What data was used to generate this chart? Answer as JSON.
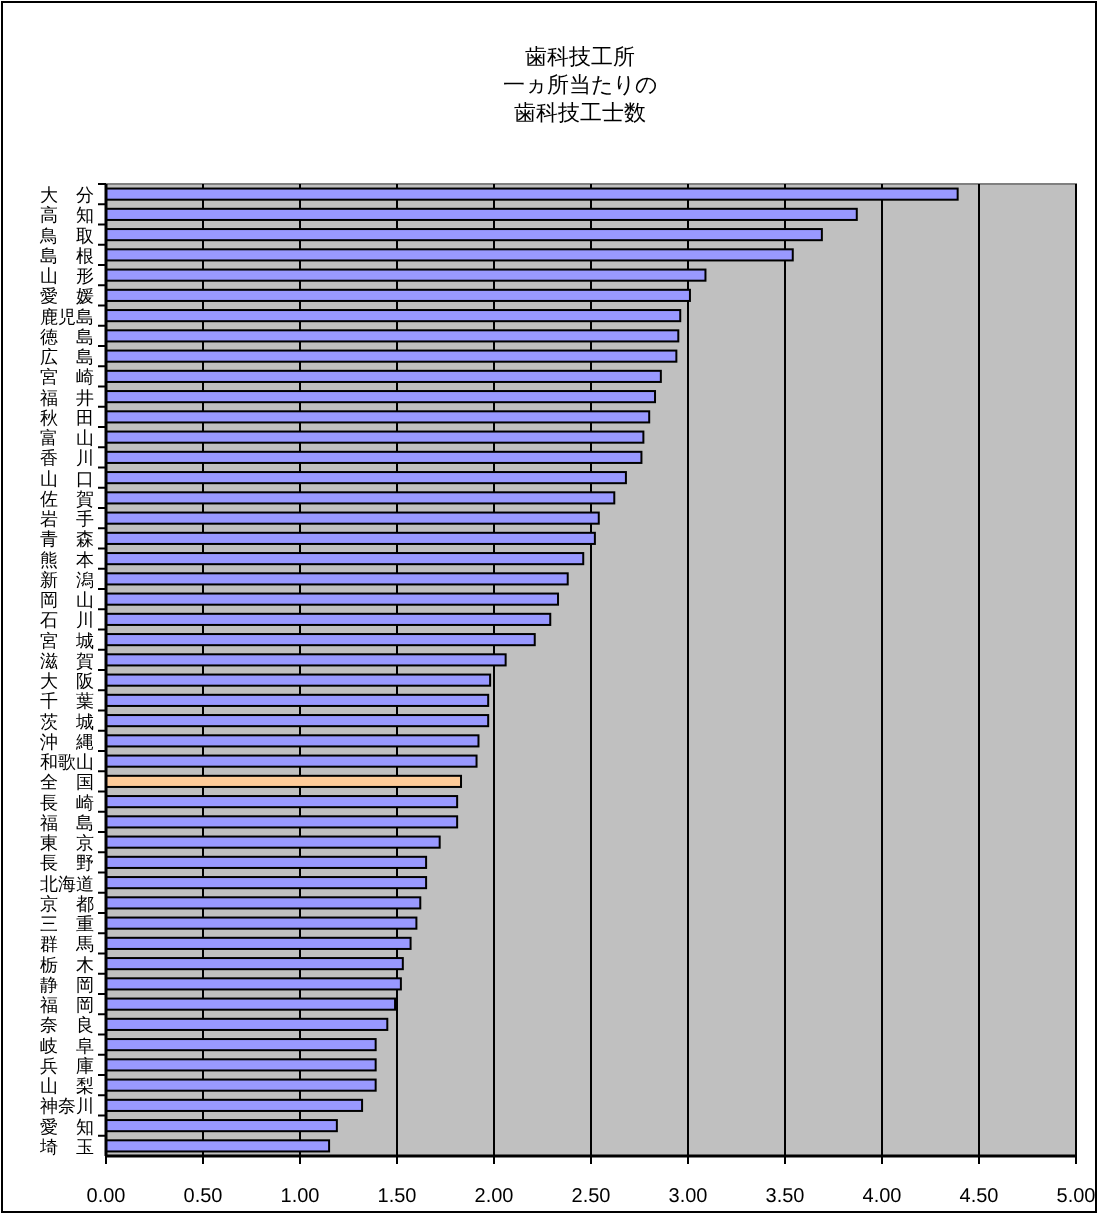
{
  "chart_data": {
    "type": "bar",
    "orientation": "horizontal",
    "title": "歯科技工所",
    "subtitle": "一ヵ所当たりの歯科技工士数",
    "categories": [
      "大　分",
      "高　知",
      "鳥　取",
      "島　根",
      "山　形",
      "愛　媛",
      "鹿児島",
      "徳　島",
      "広　島",
      "宮　崎",
      "福　井",
      "秋　田",
      "富　山",
      "香　川",
      "山　口",
      "佐　賀",
      "岩　手",
      "青　森",
      "熊　本",
      "新　潟",
      "岡　山",
      "石　川",
      "宮　城",
      "滋　賀",
      "大　阪",
      "千　葉",
      "茨　城",
      "沖　縄",
      "和歌山",
      "全　国",
      "長　崎",
      "福　島",
      "東　京",
      "長　野",
      "北海道",
      "京　都",
      "三　重",
      "群　馬",
      "栃　木",
      "静　岡",
      "福　岡",
      "奈　良",
      "岐　阜",
      "兵　庫",
      "山　梨",
      "神奈川",
      "愛　知",
      "埼　玉"
    ],
    "values": [
      4.39,
      3.87,
      3.69,
      3.54,
      3.09,
      3.01,
      2.96,
      2.95,
      2.94,
      2.86,
      2.83,
      2.8,
      2.77,
      2.76,
      2.68,
      2.62,
      2.54,
      2.52,
      2.46,
      2.38,
      2.33,
      2.29,
      2.21,
      2.06,
      1.98,
      1.97,
      1.97,
      1.92,
      1.91,
      1.83,
      1.81,
      1.81,
      1.72,
      1.65,
      1.65,
      1.62,
      1.6,
      1.57,
      1.53,
      1.52,
      1.49,
      1.45,
      1.39,
      1.39,
      1.39,
      1.32,
      1.19,
      1.15
    ],
    "colors": [
      "#9999ff",
      "#9999ff",
      "#9999ff",
      "#9999ff",
      "#9999ff",
      "#9999ff",
      "#9999ff",
      "#9999ff",
      "#9999ff",
      "#9999ff",
      "#9999ff",
      "#9999ff",
      "#9999ff",
      "#9999ff",
      "#9999ff",
      "#9999ff",
      "#9999ff",
      "#9999ff",
      "#9999ff",
      "#9999ff",
      "#9999ff",
      "#9999ff",
      "#9999ff",
      "#9999ff",
      "#9999ff",
      "#9999ff",
      "#9999ff",
      "#9999ff",
      "#9999ff",
      "#ffcc99",
      "#9999ff",
      "#9999ff",
      "#9999ff",
      "#9999ff",
      "#9999ff",
      "#9999ff",
      "#9999ff",
      "#9999ff",
      "#9999ff",
      "#9999ff",
      "#9999ff",
      "#9999ff",
      "#9999ff",
      "#9999ff",
      "#9999ff",
      "#9999ff",
      "#9999ff",
      "#9999ff"
    ],
    "xlim": [
      0,
      5
    ],
    "xticks": [
      {
        "value": 0,
        "label": "0.00"
      },
      {
        "value": 0.5,
        "label": "0.50"
      },
      {
        "value": 1,
        "label": "1.00"
      },
      {
        "value": 1.5,
        "label": "1.50"
      },
      {
        "value": 2,
        "label": "2.00"
      },
      {
        "value": 2.5,
        "label": "2.50"
      },
      {
        "value": 3,
        "label": "3.00"
      },
      {
        "value": 3.5,
        "label": "3.50"
      },
      {
        "value": 4,
        "label": "4.00"
      },
      {
        "value": 4.5,
        "label": "4.50"
      },
      {
        "value": 5,
        "label": "5.00"
      }
    ],
    "grid": "x"
  }
}
